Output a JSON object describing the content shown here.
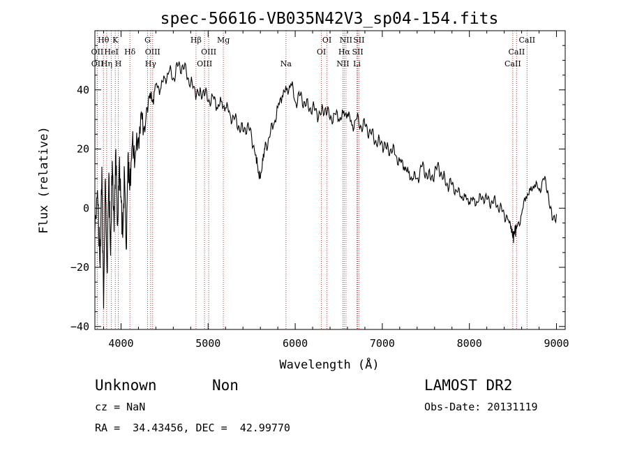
{
  "chart_data": {
    "type": "line",
    "title": "spec-56616-VB035N42V3_sp04-154.fits",
    "xlabel": "Wavelength (Å)",
    "ylabel": "Flux (relative)",
    "xlim": [
      3700,
      9100
    ],
    "ylim": [
      -41,
      60
    ],
    "xticks": [
      4000,
      5000,
      6000,
      7000,
      8000,
      9000
    ],
    "yticks": [
      -40,
      -20,
      0,
      20,
      40
    ],
    "grid": false,
    "series": [
      {
        "x": [
          3700,
          3730,
          3760,
          3780,
          3800,
          3820,
          3840,
          3860,
          3880,
          3900,
          3920,
          3940,
          3960,
          3980,
          4000,
          4020,
          4040,
          4060,
          4080,
          4100,
          4130,
          4160,
          4200,
          4240,
          4280,
          4320,
          4360,
          4400,
          4450,
          4500,
          4550,
          4600,
          4650,
          4700,
          4750,
          4800,
          4850,
          4900,
          4950,
          5000,
          5050,
          5100,
          5150,
          5200,
          5250,
          5300,
          5350,
          5400,
          5450,
          5500,
          5550,
          5580,
          5600,
          5630,
          5650,
          5700,
          5750,
          5800,
          5850,
          5900,
          5950,
          6000,
          6050,
          6100,
          6150,
          6200,
          6250,
          6300,
          6350,
          6400,
          6450,
          6500,
          6550,
          6600,
          6650,
          6700,
          6750,
          6800,
          6850,
          6900,
          6950,
          7000,
          7050,
          7100,
          7150,
          7200,
          7250,
          7300,
          7350,
          7400,
          7450,
          7500,
          7550,
          7600,
          7650,
          7700,
          7750,
          7800,
          7850,
          7900,
          7950,
          8000,
          8050,
          8100,
          8150,
          8200,
          8250,
          8300,
          8350,
          8400,
          8450,
          8480,
          8500,
          8520,
          8550,
          8600,
          8650,
          8700,
          8750,
          8800,
          8850,
          8900,
          8950,
          9000
        ],
        "y": [
          -8,
          6,
          -20,
          14,
          -34,
          10,
          -22,
          12,
          -16,
          16,
          -8,
          20,
          -6,
          14,
          4,
          -10,
          12,
          -14,
          18,
          6,
          22,
          16,
          24,
          30,
          28,
          38,
          36,
          42,
          40,
          44,
          46,
          44,
          48,
          48,
          46,
          42,
          40,
          38,
          40,
          36,
          38,
          34,
          36,
          34,
          32,
          30,
          28,
          26,
          28,
          24,
          18,
          12,
          10,
          16,
          20,
          24,
          28,
          34,
          38,
          40,
          42,
          36,
          38,
          36,
          34,
          34,
          32,
          32,
          34,
          30,
          32,
          30,
          32,
          32,
          28,
          30,
          28,
          28,
          26,
          24,
          22,
          22,
          20,
          20,
          18,
          16,
          14,
          12,
          10,
          10,
          14,
          12,
          10,
          12,
          14,
          10,
          8,
          8,
          6,
          4,
          4,
          2,
          3,
          2,
          4,
          3,
          2,
          2,
          0,
          -2,
          -4,
          -6,
          -10,
          -8,
          -6,
          -2,
          4,
          6,
          8,
          6,
          10,
          6,
          -4,
          -2
        ]
      }
    ],
    "emission_lines": [
      {
        "name": "Hθ",
        "wave": 3798,
        "row": 0
      },
      {
        "name": "OII",
        "wave": 3727,
        "row": 1
      },
      {
        "name": "OII",
        "wave": 3729,
        "row": 2
      },
      {
        "name": "HeI",
        "wave": 3889,
        "row": 1
      },
      {
        "name": "Hη",
        "wave": 3835,
        "row": 2
      },
      {
        "name": "K",
        "wave": 3934,
        "row": 0
      },
      {
        "name": "H",
        "wave": 3969,
        "row": 2
      },
      {
        "name": "Hδ",
        "wave": 4102,
        "row": 1
      },
      {
        "name": "G",
        "wave": 4305,
        "row": 0
      },
      {
        "name": "OIII",
        "wave": 4363,
        "row": 1
      },
      {
        "name": "Hγ",
        "wave": 4340,
        "row": 2
      },
      {
        "name": "Hβ",
        "wave": 4861,
        "row": 0
      },
      {
        "name": "OIII",
        "wave": 4959,
        "row": 2
      },
      {
        "name": "OIII",
        "wave": 5007,
        "row": 1
      },
      {
        "name": "Mg",
        "wave": 5175,
        "row": 0
      },
      {
        "name": "Na",
        "wave": 5894,
        "row": 2
      },
      {
        "name": "OI",
        "wave": 6300,
        "row": 1
      },
      {
        "name": "OI",
        "wave": 6364,
        "row": 0
      },
      {
        "name": "NII",
        "wave": 6548,
        "row": 2
      },
      {
        "name": "Hα",
        "wave": 6563,
        "row": 1
      },
      {
        "name": "NII",
        "wave": 6583,
        "row": 0
      },
      {
        "name": "SII",
        "wave": 6717,
        "row": 1
      },
      {
        "name": "SII",
        "wave": 6731,
        "row": 0
      },
      {
        "name": "Li",
        "wave": 6708,
        "row": 2
      },
      {
        "name": "CaII",
        "wave": 8498,
        "row": 2
      },
      {
        "name": "CaII",
        "wave": 8542,
        "row": 1
      },
      {
        "name": "CaII",
        "wave": 8662,
        "row": 0
      }
    ],
    "line_marker_color": "#b03a3a"
  },
  "info": {
    "object_class": "Unknown",
    "subclass": "Non",
    "survey": "LAMOST DR2",
    "redshift": "cz = NaN",
    "obs_date": "Obs-Date: 20131119",
    "coords": "RA =  34.43456, DEC =  42.99770"
  }
}
